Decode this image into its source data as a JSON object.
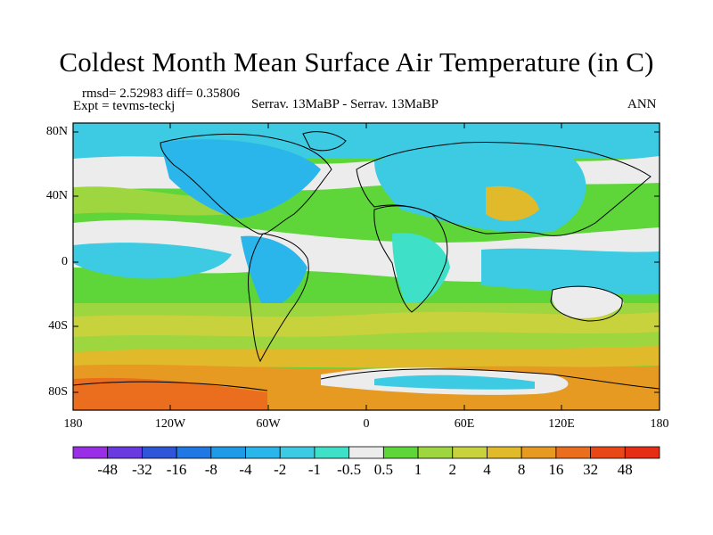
{
  "title": "Coldest Month Mean Surface Air Temperature (in C)",
  "stats": {
    "rmsd_text": "rmsd= 2.52983 diff= 0.35806",
    "expt_text": "Expt = tevms-teckj",
    "comparison": "Serrav.   13MaBP - Serrav.   13MaBP",
    "period": "ANN"
  },
  "map": {
    "projection": "cylindrical equidistant",
    "lat_labels": [
      "80N",
      "40N",
      "0",
      "40S",
      "80S"
    ],
    "lon_labels": [
      "180",
      "120W",
      "60W",
      "0",
      "60E",
      "120E",
      "180"
    ]
  },
  "colorbar": {
    "levels": [
      "-48",
      "-32",
      "-16",
      "-8",
      "-4",
      "-2",
      "-1",
      "-0.5",
      "0.5",
      "1",
      "2",
      "4",
      "8",
      "16",
      "32",
      "48"
    ],
    "colors": [
      "#9a2ee6",
      "#6a3ae0",
      "#2f55d8",
      "#1f78e4",
      "#1e9ae6",
      "#2ab6ea",
      "#3ccbe2",
      "#3ee0c8",
      "#ececec",
      "#5ed63a",
      "#9ed640",
      "#c8d23c",
      "#e0ba2a",
      "#e69a22",
      "#ea6e1e",
      "#e84818",
      "#e62e14"
    ]
  }
}
